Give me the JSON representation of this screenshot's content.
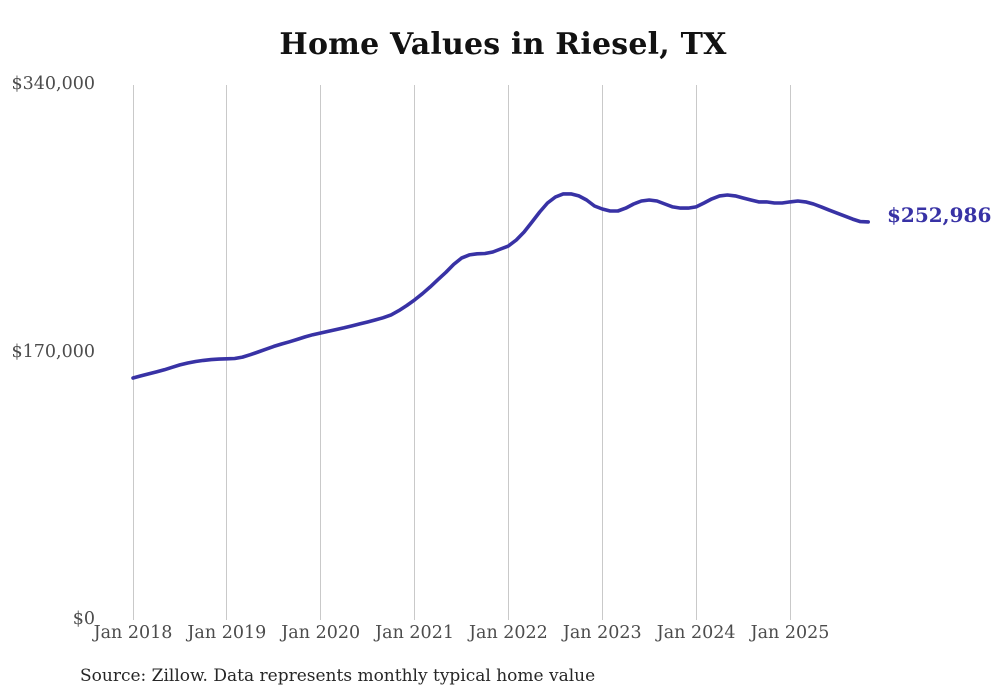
{
  "title": "Home Values in Riesel, TX",
  "source_note": "Source: Zillow. Data represents monthly typical home value",
  "end_value_label": "$252,986",
  "colors": {
    "line": "#3832a5",
    "end_label_text": "#3832a5",
    "grid": "#c9c9c9",
    "axis_text": "#4c4c4c",
    "title_text": "#121212",
    "source_text": "#262626"
  },
  "y_axis": {
    "ticks": [
      {
        "label": "$340,000",
        "value": 340000
      },
      {
        "label": "$170,000",
        "value": 170000
      },
      {
        "label": "$0",
        "value": 0
      }
    ],
    "max": 340000
  },
  "x_axis": {
    "ticks": [
      "Jan 2018",
      "Jan 2019",
      "Jan 2020",
      "Jan 2021",
      "Jan 2022",
      "Jan 2023",
      "Jan 2024",
      "Jan 2025"
    ]
  },
  "chart_data": {
    "type": "line",
    "title": "Home Values in Riesel, TX",
    "series_name": "Typical home value (monthly, Zillow)",
    "x_range": {
      "start": "2018-01",
      "end": "2025-11",
      "interval": "month"
    },
    "values": [
      153800,
      155100,
      156400,
      157700,
      159000,
      160600,
      162100,
      163300,
      164300,
      165000,
      165500,
      165800,
      166000,
      166200,
      167100,
      168600,
      170300,
      172100,
      173900,
      175400,
      176800,
      178300,
      179900,
      181300,
      182400,
      183500,
      184600,
      185700,
      186900,
      188200,
      189400,
      190700,
      192100,
      193900,
      196600,
      199900,
      203400,
      207400,
      211700,
      216300,
      221000,
      226000,
      230000,
      232000,
      232700,
      232900,
      233900,
      235800,
      237700,
      241500,
      246600,
      252900,
      259300,
      265000,
      268800,
      270800,
      270800,
      269500,
      266900,
      263100,
      261200,
      259900,
      259900,
      261800,
      264400,
      266300,
      266900,
      266300,
      264400,
      262500,
      261800,
      261800,
      262500,
      265000,
      267600,
      269500,
      270100,
      269500,
      268200,
      266900,
      265700,
      265700,
      265000,
      265000,
      265700,
      266300,
      265700,
      264400,
      262500,
      260500,
      258600,
      256700,
      254800,
      253200,
      252986
    ],
    "final_value": 252986,
    "final_value_label": "$252,986",
    "ylim": [
      0,
      340000
    ],
    "grid": "vertical-yearly",
    "legend": "none"
  }
}
